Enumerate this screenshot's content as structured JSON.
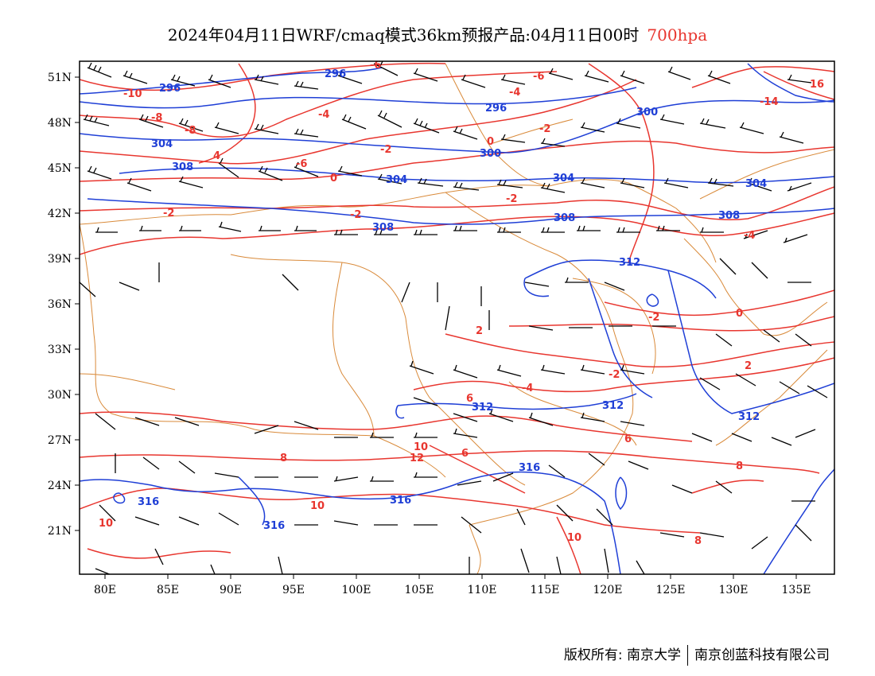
{
  "header": {
    "title": "2024年04月11日WRF/cmaq模式36km预报产品:04月11日00时",
    "level": "700hpa"
  },
  "footer": {
    "copyright": "版权所有: 南京大学",
    "company": "南京创蓝科技有限公司"
  },
  "axes": {
    "lon_labels": [
      "80E",
      "85E",
      "90E",
      "95E",
      "100E",
      "105E",
      "110E",
      "115E",
      "120E",
      "125E",
      "130E",
      "135E"
    ],
    "lat_labels": [
      "51N",
      "48N",
      "45N",
      "42N",
      "39N",
      "36N",
      "33N",
      "30N",
      "27N",
      "24N",
      "21N"
    ]
  },
  "colors": {
    "temperature": "#e8362f",
    "geopotential": "#1f3fd6",
    "border": "#d98a3a",
    "barb": "#000000"
  },
  "contour_labels": {
    "temperature": [
      "-10",
      "-8",
      "-8",
      "-6",
      "-6",
      "-4",
      "-4",
      "-2",
      "-2",
      "-2",
      "-2",
      "-2",
      "0",
      "0",
      "0",
      "2",
      "2",
      "4",
      "-14",
      "16",
      "-6",
      "-4",
      "-2",
      "6",
      "6",
      "6",
      "8",
      "8",
      "8",
      "10",
      "10",
      "10",
      "10",
      "12",
      "-4",
      "-2"
    ],
    "geopotential": [
      "296",
      "296",
      "296",
      "300",
      "300",
      "304",
      "304",
      "304",
      "308",
      "308",
      "308",
      "308",
      "312",
      "312",
      "312",
      "312",
      "316",
      "316",
      "316",
      "316",
      "304"
    ]
  }
}
